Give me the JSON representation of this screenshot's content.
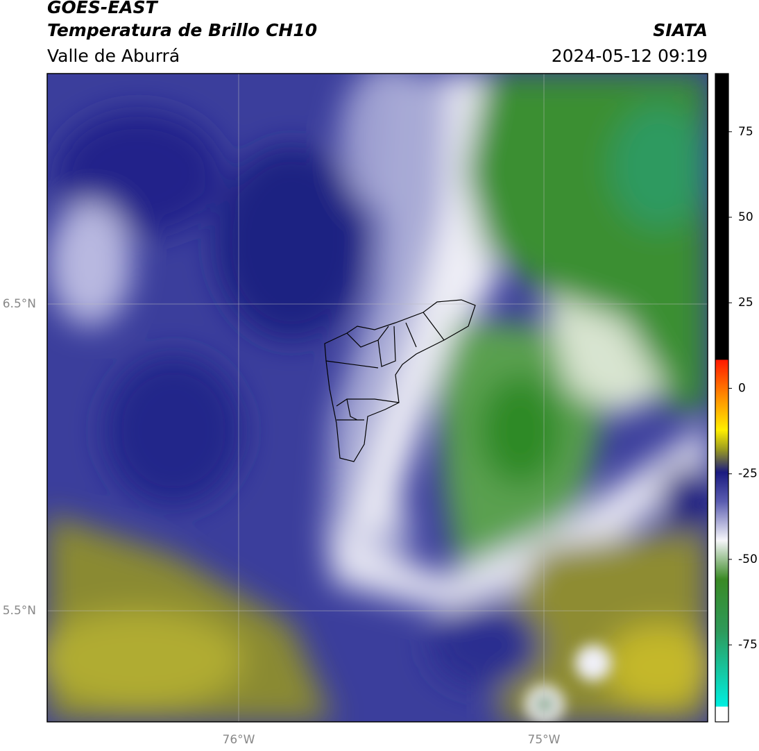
{
  "header": {
    "title": "GOES-EAST",
    "subtitle": "Temperatura de Brillo CH10",
    "region": "Valle de Aburrá",
    "source": "SIATA",
    "datetime": "2024-05-12 09:19"
  },
  "map": {
    "lat_labels": [
      "6.5°N",
      "5.5°N"
    ],
    "lon_labels": [
      "76°W",
      "75°W"
    ]
  },
  "colorbar": {
    "lim": [
      -97.5,
      92
    ],
    "ticks": [
      75,
      50,
      25,
      0,
      -25,
      -50,
      -75
    ]
  }
}
